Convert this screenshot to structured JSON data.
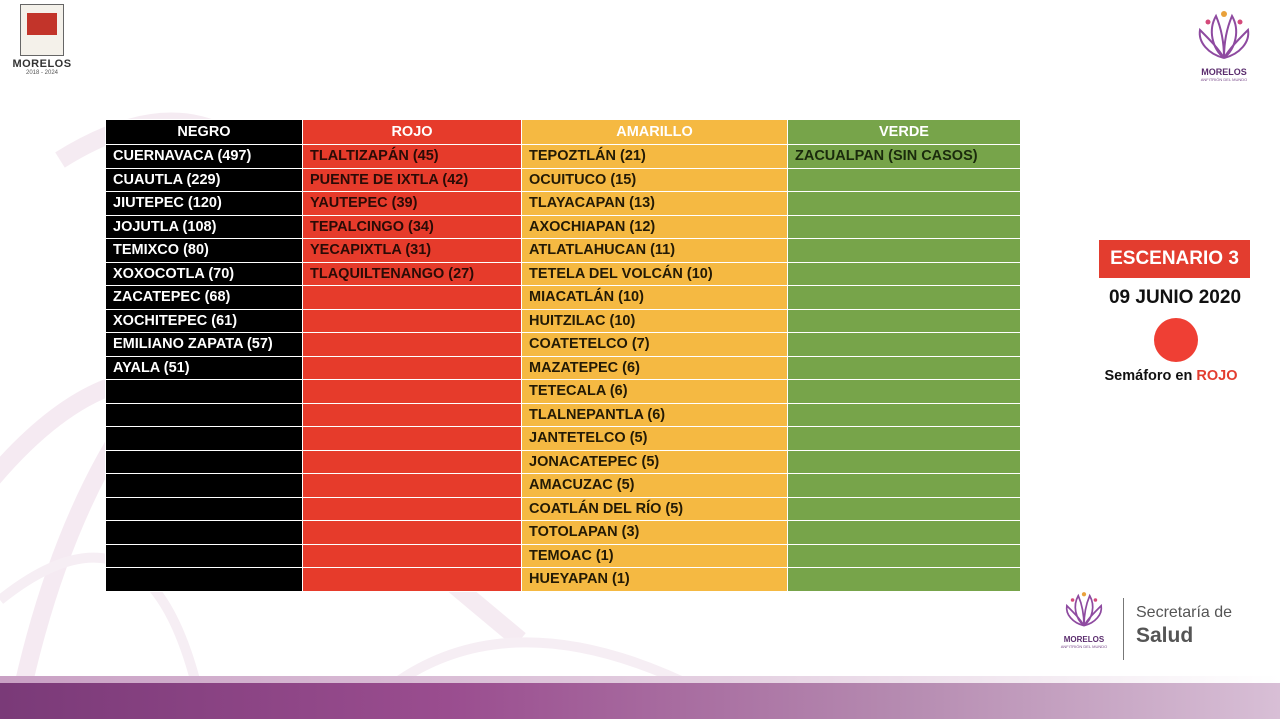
{
  "header": {
    "left_logo": {
      "name": "MORELOS",
      "years": "2018 - 2024"
    },
    "right_logo": {
      "brand": "MORELOS",
      "tagline": "ANFITRIÓN DEL MUNDO"
    }
  },
  "table": {
    "headers": [
      "NEGRO",
      "ROJO",
      "AMARILLO",
      "VERDE"
    ],
    "colors": {
      "negro": "#000000",
      "rojo": "#e63b2b",
      "amarillo": "#f5b942",
      "verde": "#77a44a"
    },
    "rows": [
      [
        "CUERNAVACA (497)",
        "TLALTIZAPÁN (45)",
        "TEPOZTLÁN (21)",
        "ZACUALPAN  (SIN CASOS)"
      ],
      [
        "CUAUTLA (229)",
        "PUENTE DE IXTLA (42)",
        "OCUITUCO (15)",
        ""
      ],
      [
        "JIUTEPEC (120)",
        "YAUTEPEC (39)",
        "TLAYACAPAN (13)",
        ""
      ],
      [
        "JOJUTLA (108)",
        "TEPALCINGO (34)",
        "AXOCHIAPAN (12)",
        ""
      ],
      [
        "TEMIXCO (80)",
        "YECAPIXTLA (31)",
        "ATLATLAHUCAN (11)",
        ""
      ],
      [
        "XOXOCOTLA (70)",
        "TLAQUILTENANGO (27)",
        "TETELA DEL VOLCÁN (10)",
        ""
      ],
      [
        "ZACATEPEC (68)",
        "",
        "MIACATLÁN (10)",
        ""
      ],
      [
        "XOCHITEPEC (61)",
        "",
        "HUITZILAC (10)",
        ""
      ],
      [
        "EMILIANO ZAPATA (57)",
        "",
        "COATETELCO  (7)",
        ""
      ],
      [
        " AYALA (51)",
        "",
        "MAZATEPEC (6)",
        ""
      ],
      [
        "",
        "",
        "TETECALA (6)",
        ""
      ],
      [
        "",
        "",
        "TLALNEPANTLA (6)",
        ""
      ],
      [
        "",
        "",
        "JANTETELCO (5)",
        ""
      ],
      [
        "",
        "",
        "JONACATEPEC (5)",
        ""
      ],
      [
        "",
        "",
        "AMACUZAC (5)",
        ""
      ],
      [
        "",
        "",
        "COATLÁN DEL RÍO (5)",
        ""
      ],
      [
        "",
        "",
        "TOTOLAPAN (3)",
        ""
      ],
      [
        "",
        "",
        "TEMOAC (1)",
        ""
      ],
      [
        "",
        "",
        "HUEYAPAN (1)",
        ""
      ]
    ]
  },
  "scenario": {
    "badge": "ESCENARIO 3",
    "date": "09 JUNIO 2020",
    "semaforo_prefix": "Semáforo en ",
    "semaforo_color": "ROJO",
    "dot_color": "#ef3f34"
  },
  "footer": {
    "brand": "MORELOS",
    "tagline": "ANFITRIÓN DEL MUNDO",
    "secretaria_line1": "Secretaría de",
    "secretaria_line2": "Salud"
  }
}
